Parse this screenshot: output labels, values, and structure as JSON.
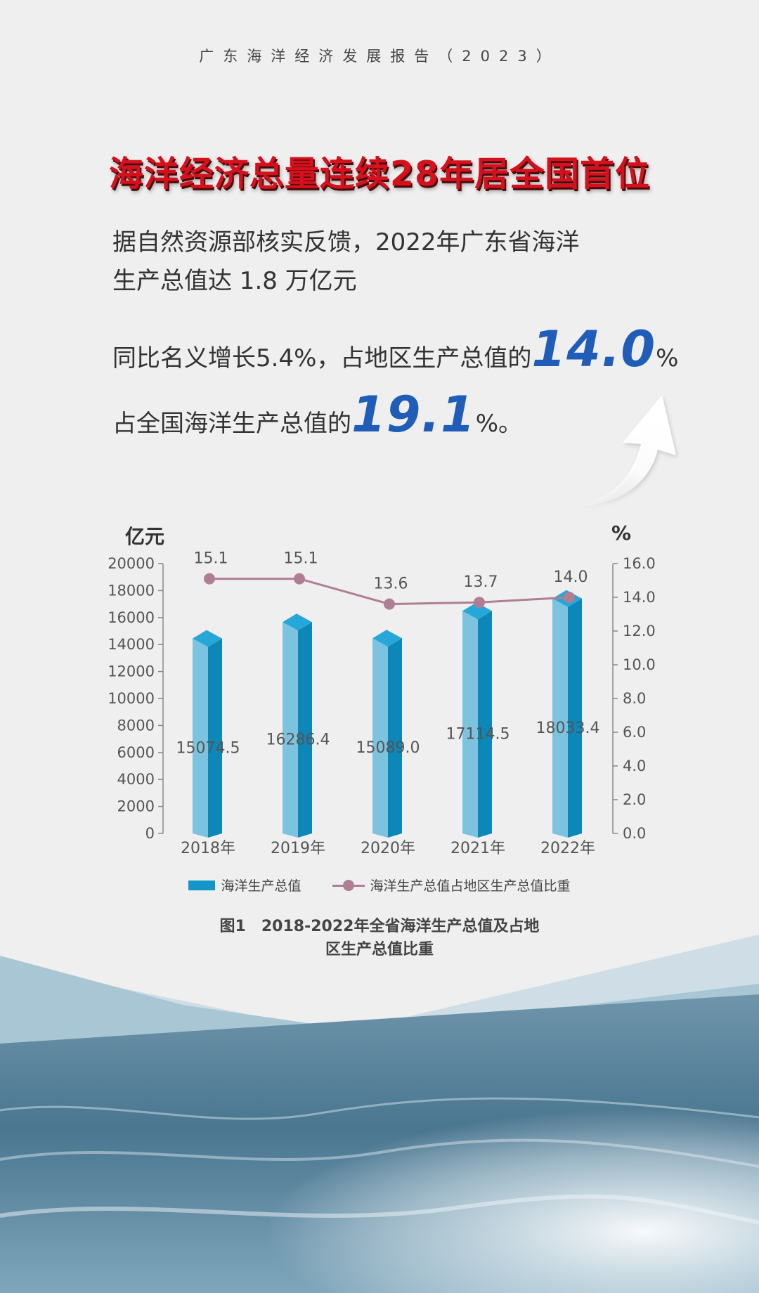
{
  "header": {
    "report_title": "广东海洋经济发展报告（2023）"
  },
  "headline": "海洋经济总量连续28年居全国首位",
  "intro": {
    "line1": "据自然资源部核实反馈，2022年广东省海洋",
    "line2": "生产总值达 1.8 万亿元",
    "line3_prefix": "同比名义增长5.4%，占地区生产总值的",
    "line3_big": "14.0",
    "line3_suffix": "%",
    "line4_prefix": "占全国海洋生产总值的",
    "line4_big": "19.1",
    "line4_suffix": "%。"
  },
  "chart_data": {
    "type": "bar",
    "categories": [
      "2018年",
      "2019年",
      "2020年",
      "2021年",
      "2022年"
    ],
    "series": [
      {
        "name": "海洋生产总值",
        "type": "bar",
        "axis": "left",
        "values": [
          15074.5,
          16286.4,
          15089.0,
          17114.5,
          18033.4
        ],
        "labels": [
          "15074.5",
          "16286.4",
          "15089.0",
          "17114.5",
          "18033.4"
        ],
        "color": "#1596c8"
      },
      {
        "name": "海洋生产总值占地区生产总值比重",
        "type": "line",
        "axis": "right",
        "values": [
          15.1,
          15.1,
          13.6,
          13.7,
          14.0
        ],
        "labels": [
          "15.1",
          "15.1",
          "13.6",
          "13.7",
          "14.0"
        ],
        "color": "#b07e94"
      }
    ],
    "left_axis": {
      "unit": "亿元",
      "ticks": [
        "0",
        "2000",
        "4000",
        "6000",
        "8000",
        "10000",
        "12000",
        "14000",
        "16000",
        "18000",
        "20000"
      ],
      "ylim": [
        0,
        20000
      ]
    },
    "right_axis": {
      "unit": "%",
      "ticks": [
        "0.0",
        "2.0",
        "4.0",
        "6.0",
        "8.0",
        "10.0",
        "12.0",
        "14.0",
        "16.0"
      ],
      "ylim": [
        0,
        16
      ]
    },
    "legend_position": "bottom",
    "grid": false,
    "caption_line1": "图1　2018-2022年全省海洋生产总值及占地",
    "caption_line2": "区生产总值比重"
  }
}
